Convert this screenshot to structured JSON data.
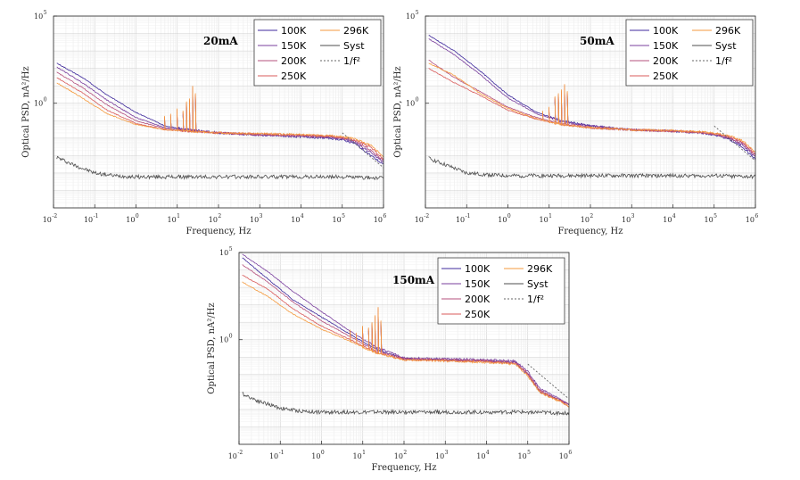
{
  "figure": {
    "colors": {
      "100K": "#3f2a9c",
      "150K": "#7a3f9e",
      "200K": "#b4507e",
      "250K": "#d95b5b",
      "296K": "#f59a3e",
      "Syst": "#4d4d4d",
      "inv_f2": "#666666"
    }
  },
  "chart_data": [
    {
      "type": "line",
      "panel": "20mA",
      "title": "20mA",
      "xlabel": "Frequency, Hz",
      "ylabel": "Optical PSD, nA²/Hz",
      "xscale": "log",
      "yscale": "log",
      "xlim": [
        0.01,
        1000000
      ],
      "ylim": [
        1e-06,
        100000
      ],
      "x_ticks": [
        "10",
        "10",
        "10",
        "10",
        "10",
        "10",
        "10",
        "10",
        "10"
      ],
      "x_tick_exps": [
        "-2",
        "-1",
        "0",
        "1",
        "2",
        "3",
        "4",
        "5",
        "6"
      ],
      "y_ticks": [
        "10",
        "10"
      ],
      "y_tick_exps": [
        "0",
        "5"
      ],
      "legend": {
        "placement": "top-right",
        "entries": [
          "100K",
          "150K",
          "200K",
          "250K",
          "296K",
          "Syst",
          "1/f²"
        ]
      },
      "grid": true,
      "series": [
        {
          "name": "100K",
          "x": [
            0.012,
            0.05,
            0.2,
            1,
            5,
            20,
            100,
            1000,
            10000,
            50000,
            100000,
            200000,
            500000,
            1000000
          ],
          "y": [
            200,
            30,
            3,
            0.3,
            0.05,
            0.03,
            0.02,
            0.015,
            0.012,
            0.01,
            0.008,
            0.005,
            0.001,
            0.0003
          ]
        },
        {
          "name": "150K",
          "x": [
            0.012,
            0.05,
            0.2,
            1,
            5,
            20,
            100,
            1000,
            10000,
            50000,
            100000,
            200000,
            500000,
            1000000
          ],
          "y": [
            120,
            15,
            1.5,
            0.15,
            0.04,
            0.03,
            0.02,
            0.015,
            0.013,
            0.011,
            0.009,
            0.006,
            0.0015,
            0.0004
          ]
        },
        {
          "name": "200K",
          "x": [
            0.012,
            0.05,
            0.2,
            1,
            5,
            20,
            100,
            1000,
            10000,
            50000,
            100000,
            200000,
            500000,
            1000000
          ],
          "y": [
            60,
            8,
            0.8,
            0.1,
            0.035,
            0.025,
            0.02,
            0.016,
            0.014,
            0.012,
            0.01,
            0.007,
            0.002,
            0.0005
          ]
        },
        {
          "name": "250K",
          "x": [
            0.012,
            0.05,
            0.2,
            1,
            5,
            20,
            100,
            1000,
            10000,
            50000,
            100000,
            200000,
            500000,
            1000000
          ],
          "y": [
            30,
            4,
            0.4,
            0.07,
            0.03,
            0.025,
            0.02,
            0.017,
            0.015,
            0.013,
            0.011,
            0.008,
            0.003,
            0.0006
          ]
        },
        {
          "name": "296K",
          "x": [
            0.012,
            0.05,
            0.2,
            1,
            5,
            20,
            100,
            1000,
            10000,
            50000,
            100000,
            200000,
            500000,
            1000000
          ],
          "y": [
            15,
            2,
            0.25,
            0.06,
            0.03,
            0.025,
            0.02,
            0.018,
            0.016,
            0.014,
            0.012,
            0.009,
            0.004,
            0.0008
          ]
        },
        {
          "name": "Syst",
          "x": [
            0.012,
            0.03,
            0.1,
            0.3,
            1,
            10,
            100,
            1000,
            10000,
            100000,
            1000000
          ],
          "y": [
            0.0008,
            0.0003,
            0.0001,
            7e-05,
            6e-05,
            6e-05,
            6e-05,
            6e-05,
            6e-05,
            6e-05,
            5e-05
          ]
        },
        {
          "name": "1/f²",
          "x": [
            100000,
            1000000
          ],
          "y": [
            0.02,
            0.0002
          ]
        }
      ],
      "peaks_hz": [
        5,
        7,
        10,
        14,
        17,
        20,
        24,
        28
      ],
      "peak_values": [
        0.15,
        0.2,
        0.4,
        0.3,
        1,
        1.5,
        8,
        3
      ]
    },
    {
      "type": "line",
      "panel": "50mA",
      "title": "50mA",
      "xlabel": "Frequency, Hz",
      "ylabel": "Optical PSD, nA²/Hz",
      "xscale": "log",
      "yscale": "log",
      "xlim": [
        0.01,
        1000000
      ],
      "ylim": [
        1e-06,
        100000
      ],
      "x_ticks": [
        "10",
        "10",
        "10",
        "10",
        "10",
        "10",
        "10",
        "10",
        "10"
      ],
      "x_tick_exps": [
        "-2",
        "-1",
        "0",
        "1",
        "2",
        "3",
        "4",
        "5",
        "6"
      ],
      "y_ticks": [
        "10",
        "10"
      ],
      "y_tick_exps": [
        "0",
        "5"
      ],
      "legend": {
        "placement": "top-right",
        "entries": [
          "100K",
          "150K",
          "200K",
          "250K",
          "296K",
          "Syst",
          "1/f²"
        ]
      },
      "grid": true,
      "series": [
        {
          "name": "100K",
          "x": [
            0.012,
            0.05,
            0.2,
            1,
            5,
            20,
            100,
            1000,
            10000,
            50000,
            100000,
            200000,
            500000,
            1000000
          ],
          "y": [
            8000,
            1000,
            80,
            3,
            0.3,
            0.1,
            0.05,
            0.03,
            0.025,
            0.02,
            0.015,
            0.01,
            0.003,
            0.0006
          ]
        },
        {
          "name": "150K",
          "x": [
            0.012,
            0.05,
            0.2,
            1,
            5,
            20,
            100,
            1000,
            10000,
            50000,
            100000,
            200000,
            500000,
            1000000
          ],
          "y": [
            5000,
            600,
            50,
            2,
            0.25,
            0.09,
            0.05,
            0.03,
            0.025,
            0.02,
            0.016,
            0.011,
            0.004,
            0.0008
          ]
        },
        {
          "name": "200K",
          "x": [
            0.012,
            0.05,
            0.2,
            1,
            5,
            20,
            100,
            1000,
            10000,
            50000,
            100000,
            200000,
            500000,
            1000000
          ],
          "y": [
            300,
            30,
            5,
            0.6,
            0.15,
            0.07,
            0.04,
            0.03,
            0.025,
            0.021,
            0.017,
            0.012,
            0.005,
            0.001
          ]
        },
        {
          "name": "250K",
          "x": [
            0.012,
            0.05,
            0.2,
            1,
            5,
            20,
            100,
            1000,
            10000,
            50000,
            100000,
            200000,
            500000,
            1000000
          ],
          "y": [
            100,
            15,
            3,
            0.4,
            0.12,
            0.06,
            0.04,
            0.03,
            0.026,
            0.022,
            0.018,
            0.013,
            0.006,
            0.0012
          ]
        },
        {
          "name": "296K",
          "x": [
            0.012,
            0.05,
            0.2,
            1,
            5,
            20,
            100,
            1000,
            10000,
            50000,
            100000,
            200000,
            500000,
            1000000
          ],
          "y": [
            200,
            40,
            4,
            0.5,
            0.13,
            0.06,
            0.04,
            0.03,
            0.027,
            0.023,
            0.019,
            0.015,
            0.007,
            0.0015
          ]
        },
        {
          "name": "Syst",
          "x": [
            0.012,
            0.03,
            0.1,
            0.3,
            1,
            10,
            100,
            1000,
            10000,
            100000,
            1000000
          ],
          "y": [
            0.0007,
            0.0003,
            0.0001,
            8e-05,
            7e-05,
            7e-05,
            7e-05,
            7e-05,
            7e-05,
            7e-05,
            6e-05
          ]
        },
        {
          "name": "1/f²",
          "x": [
            100000,
            1000000
          ],
          "y": [
            0.05,
            0.0005
          ]
        }
      ],
      "peaks_hz": [
        7,
        10,
        14,
        17,
        20,
        24,
        28
      ],
      "peak_values": [
        0.3,
        0.5,
        2,
        3,
        5,
        10,
        4
      ]
    },
    {
      "type": "line",
      "panel": "150mA",
      "title": "150mA",
      "xlabel": "Frequency, Hz",
      "ylabel": "Optical PSD, nA²/Hz",
      "xscale": "log",
      "yscale": "log",
      "xlim": [
        0.01,
        1000000
      ],
      "ylim": [
        1e-06,
        100000
      ],
      "x_ticks": [
        "10",
        "10",
        "10",
        "10",
        "10",
        "10",
        "10",
        "10",
        "10"
      ],
      "x_tick_exps": [
        "-2",
        "-1",
        "0",
        "1",
        "2",
        "3",
        "4",
        "5",
        "6"
      ],
      "y_ticks": [
        "10",
        "10"
      ],
      "y_tick_exps": [
        "0",
        "5"
      ],
      "legend": {
        "placement": "top-right",
        "entries": [
          "100K",
          "150K",
          "200K",
          "250K",
          "296K",
          "Syst",
          "1/f²"
        ]
      },
      "grid": true,
      "series": [
        {
          "name": "100K",
          "x": [
            0.012,
            0.05,
            0.2,
            1,
            5,
            20,
            100,
            1000,
            10000,
            50000,
            100000,
            200000,
            500000,
            1000000
          ],
          "y": [
            50000,
            3000,
            200,
            20,
            2,
            0.3,
            0.08,
            0.07,
            0.06,
            0.05,
            0.01,
            0.001,
            0.0004,
            0.0002
          ]
        },
        {
          "name": "150K",
          "x": [
            0.012,
            0.05,
            0.2,
            1,
            5,
            20,
            100,
            1000,
            10000,
            50000,
            100000,
            200000,
            500000,
            1000000
          ],
          "y": [
            80000,
            8000,
            600,
            40,
            3,
            0.4,
            0.09,
            0.08,
            0.07,
            0.06,
            0.015,
            0.0015,
            0.0005,
            0.0002
          ]
        },
        {
          "name": "200K",
          "x": [
            0.012,
            0.05,
            0.2,
            1,
            5,
            20,
            100,
            1000,
            10000,
            50000,
            100000,
            200000,
            500000,
            1000000
          ],
          "y": [
            20000,
            2000,
            150,
            12,
            1.5,
            0.25,
            0.08,
            0.07,
            0.06,
            0.05,
            0.012,
            0.0012,
            0.0004,
            0.0002
          ]
        },
        {
          "name": "250K",
          "x": [
            0.012,
            0.05,
            0.2,
            1,
            5,
            20,
            100,
            1000,
            10000,
            50000,
            100000,
            200000,
            500000,
            1000000
          ],
          "y": [
            5000,
            800,
            60,
            6,
            1,
            0.2,
            0.07,
            0.065,
            0.055,
            0.045,
            0.01,
            0.001,
            0.0004,
            0.00015
          ]
        },
        {
          "name": "296K",
          "x": [
            0.012,
            0.05,
            0.2,
            1,
            5,
            20,
            100,
            1000,
            10000,
            50000,
            100000,
            200000,
            500000,
            1000000
          ],
          "y": [
            2000,
            300,
            30,
            4,
            0.8,
            0.18,
            0.07,
            0.06,
            0.05,
            0.04,
            0.008,
            0.0009,
            0.00035,
            0.00015
          ]
        },
        {
          "name": "Syst",
          "x": [
            0.012,
            0.03,
            0.1,
            0.3,
            1,
            10,
            100,
            1000,
            10000,
            100000,
            1000000
          ],
          "y": [
            0.0008,
            0.0003,
            0.00012,
            8e-05,
            7e-05,
            7e-05,
            7e-05,
            7e-05,
            7e-05,
            7e-05,
            6e-05
          ]
        },
        {
          "name": "1/f²",
          "x": [
            100000,
            1000000
          ],
          "y": [
            0.04,
            0.0004
          ]
        }
      ],
      "peaks_hz": [
        5,
        7,
        10,
        14,
        17,
        20,
        24,
        28
      ],
      "peak_values": [
        3,
        2,
        5,
        4,
        8,
        20,
        60,
        10
      ]
    }
  ]
}
